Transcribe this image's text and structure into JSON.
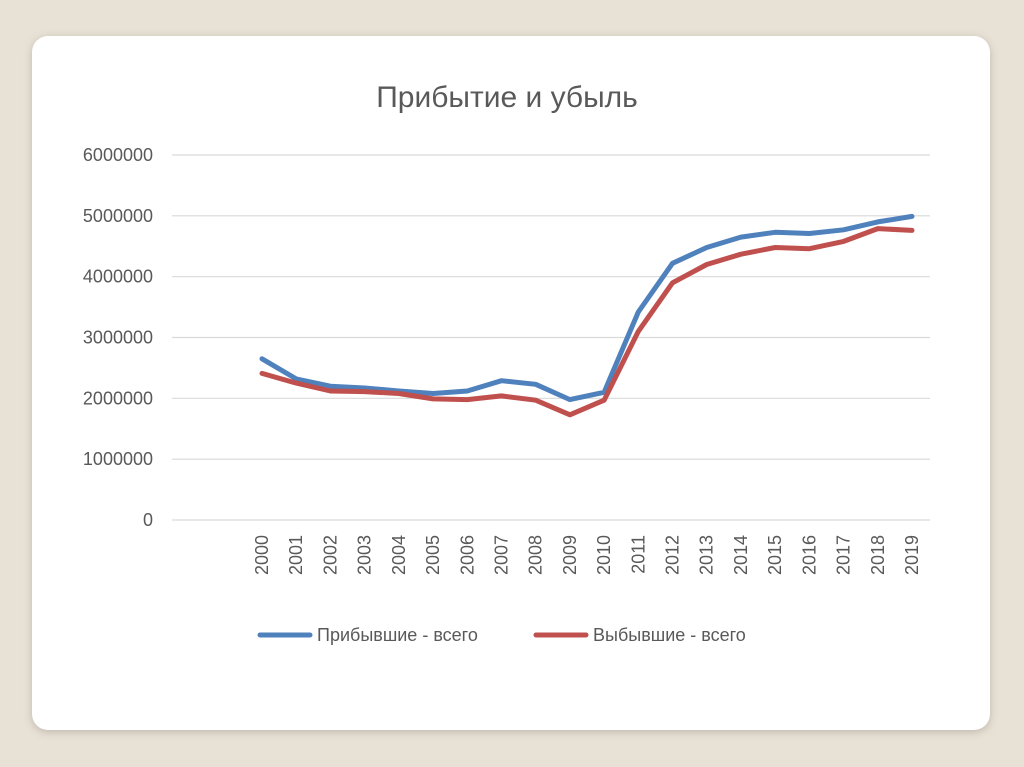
{
  "chart_data": {
    "type": "line",
    "title": "Прибытие и убыль",
    "xlabel": "",
    "ylabel": "",
    "categories": [
      "2000",
      "2001",
      "2002",
      "2003",
      "2004",
      "2005",
      "2006",
      "2007",
      "2008",
      "2009",
      "2010",
      "2011",
      "2012",
      "2013",
      "2014",
      "2015",
      "2016",
      "2017",
      "2018",
      "2019"
    ],
    "y_ticks": [
      "0",
      "1000000",
      "2000000",
      "3000000",
      "4000000",
      "5000000",
      "6000000"
    ],
    "ylim": [
      0,
      6000000
    ],
    "grid": true,
    "legend_position": "bottom",
    "series": [
      {
        "name": "Прибывшие - всего",
        "color": "#4f81bd",
        "values": [
          2650000,
          2320000,
          2200000,
          2170000,
          2120000,
          2080000,
          2120000,
          2290000,
          2230000,
          1980000,
          2100000,
          3420000,
          4220000,
          4480000,
          4650000,
          4730000,
          4710000,
          4770000,
          4900000,
          4990000
        ]
      },
      {
        "name": "Выбывшие - всего",
        "color": "#c0504d",
        "values": [
          2410000,
          2250000,
          2120000,
          2110000,
          2080000,
          1990000,
          1980000,
          2040000,
          1970000,
          1730000,
          1970000,
          3100000,
          3900000,
          4200000,
          4370000,
          4480000,
          4460000,
          4580000,
          4790000,
          4760000
        ]
      }
    ]
  }
}
